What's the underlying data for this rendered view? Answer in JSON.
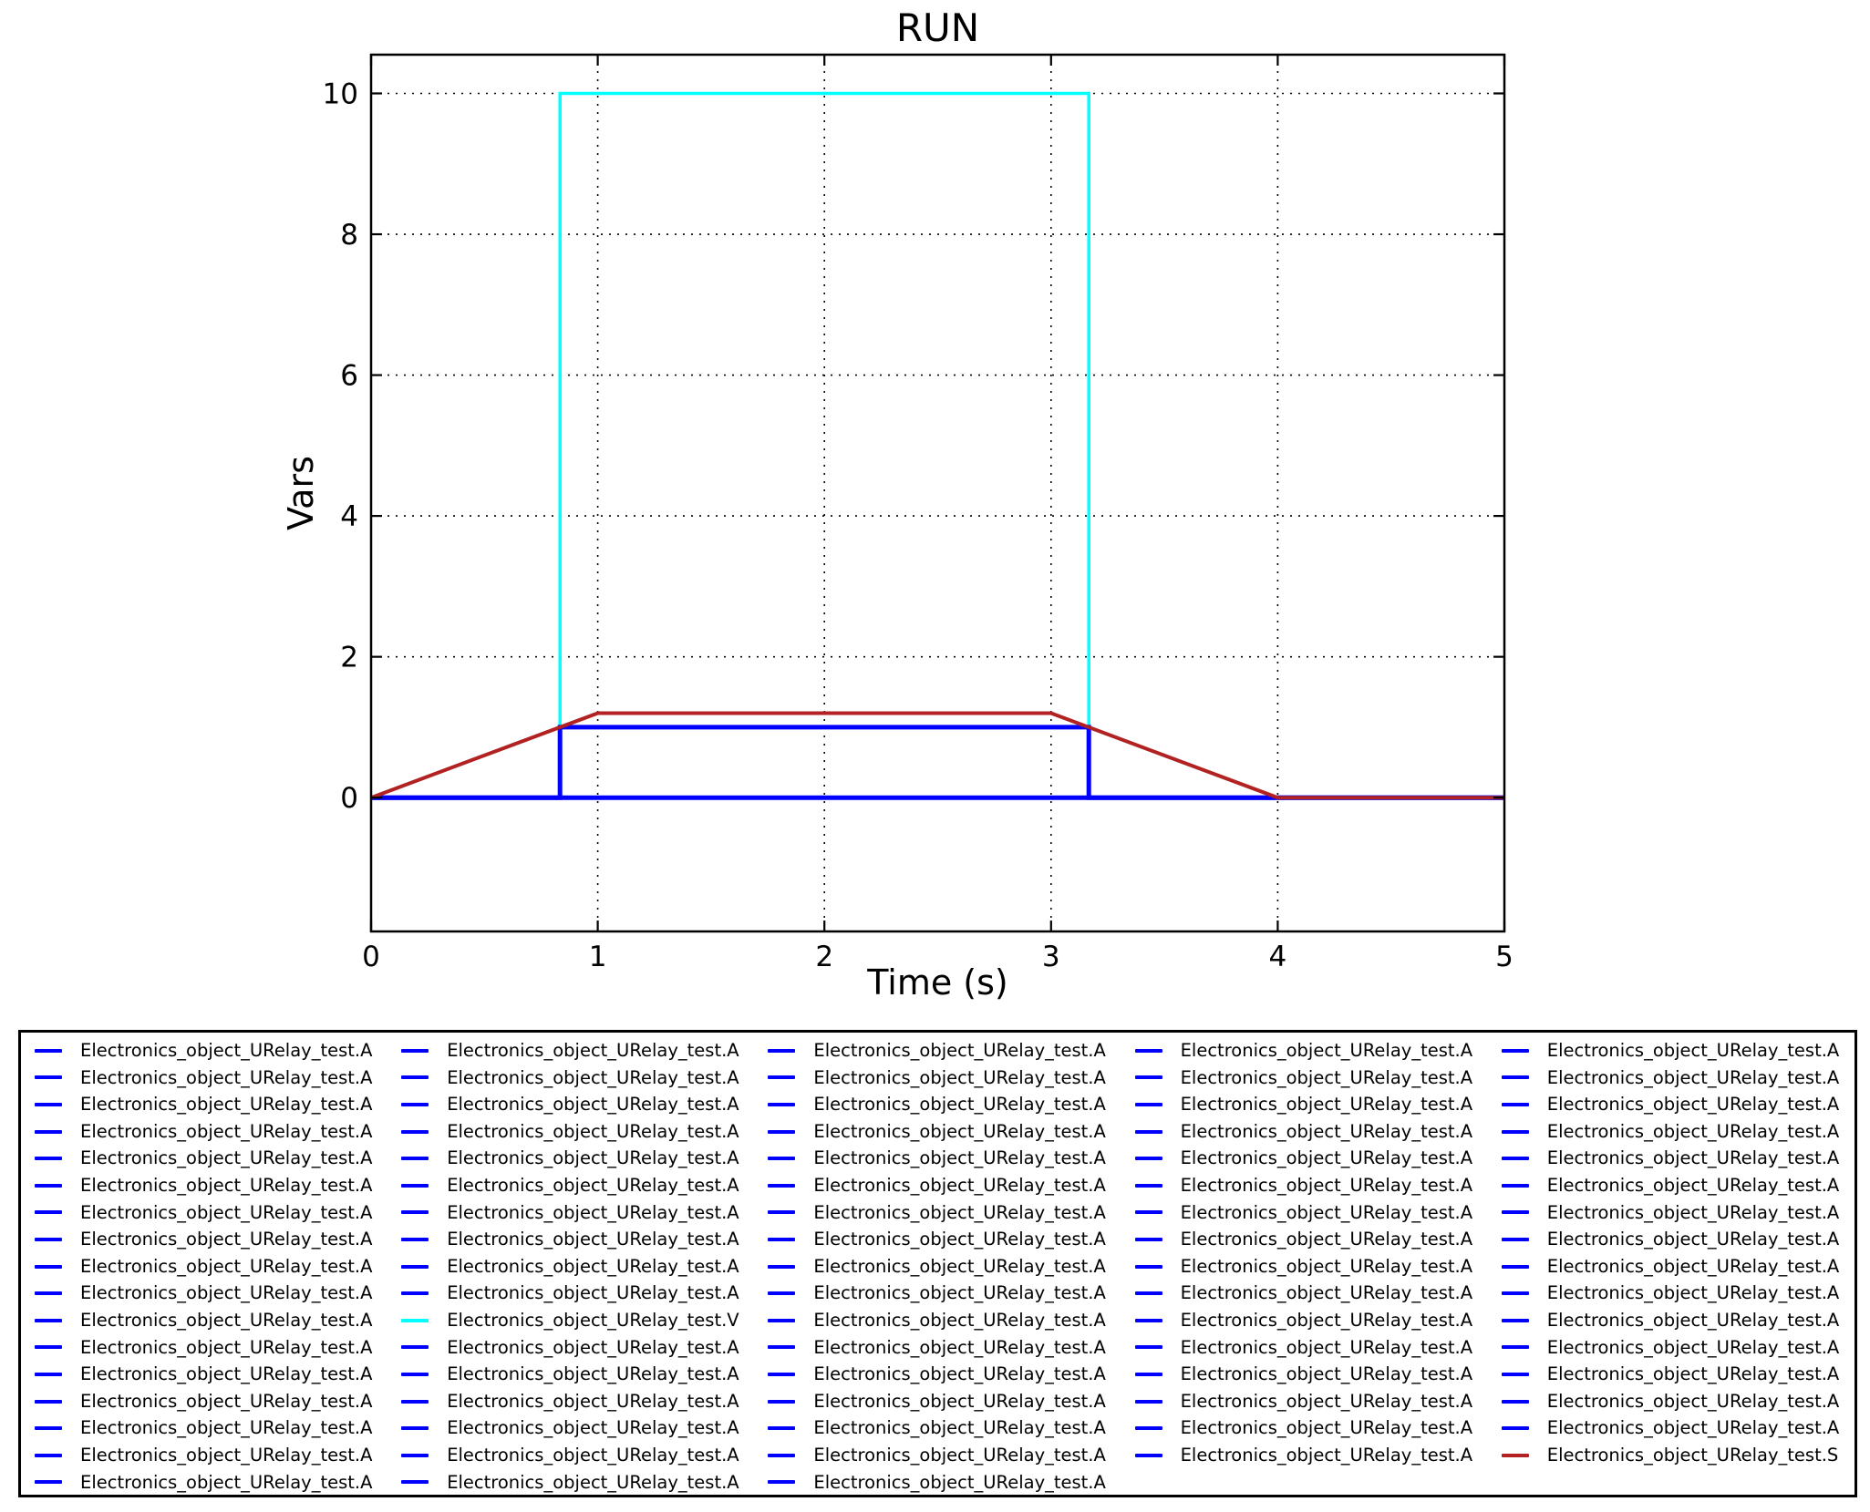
{
  "figure": {
    "background": "#ffffff",
    "frame_color": "#000000",
    "grid_style": "dotted"
  },
  "chart_data": {
    "type": "line",
    "title": "RUN",
    "xlabel": "Time (s)",
    "ylabel": "Vars",
    "xlim": [
      0,
      5
    ],
    "ylim": [
      -1.9,
      10.55
    ],
    "xticks": [
      0,
      1,
      2,
      3,
      4,
      5
    ],
    "yticks": [
      0,
      2,
      4,
      6,
      8,
      10
    ],
    "grid": true,
    "legend_position": "below",
    "series": [
      {
        "name": "Electronics_object_URelay_test.V",
        "color": "#00ffff",
        "width": 3.5,
        "points": [
          [
            0,
            0
          ],
          [
            0.8333,
            0
          ],
          [
            0.8333,
            10
          ],
          [
            3.1667,
            10
          ],
          [
            3.1667,
            0
          ],
          [
            5,
            0
          ]
        ]
      },
      {
        "name": "Electronics_object_URelay_test.A",
        "color": "#0000ff",
        "width": 5,
        "points": [
          [
            0,
            0
          ],
          [
            5,
            0
          ]
        ]
      },
      {
        "name": "Electronics_object_URelay_test.A",
        "color": "#0000ff",
        "width": 5,
        "points": [
          [
            0,
            0
          ],
          [
            0.8333,
            0
          ],
          [
            0.8333,
            1
          ],
          [
            3.1667,
            1
          ],
          [
            3.1667,
            0
          ],
          [
            5,
            0
          ]
        ]
      },
      {
        "name": "Electronics_object_URelay_test.S",
        "color": "#b22222",
        "width": 4,
        "points": [
          [
            0,
            0
          ],
          [
            1,
            1.2
          ],
          [
            3,
            1.2
          ],
          [
            4,
            0
          ],
          [
            5,
            0
          ]
        ]
      }
    ]
  },
  "legend": {
    "labels": {
      "A": "Electronics_object_URelay_test.A",
      "V": "Electronics_object_URelay_test.V",
      "S": "Electronics_object_URelay_test.S"
    },
    "colors": {
      "A": "#0000ff",
      "V": "#00ffff",
      "S": "#b22222"
    },
    "columns": [
      [
        "A",
        "A",
        "A",
        "A",
        "A",
        "A",
        "A",
        "A",
        "A",
        "A",
        "A",
        "A",
        "A",
        "A",
        "A",
        "A",
        "A"
      ],
      [
        "A",
        "A",
        "A",
        "A",
        "A",
        "A",
        "A",
        "A",
        "A",
        "A",
        "V",
        "A",
        "A",
        "A",
        "A",
        "A",
        "A"
      ],
      [
        "A",
        "A",
        "A",
        "A",
        "A",
        "A",
        "A",
        "A",
        "A",
        "A",
        "A",
        "A",
        "A",
        "A",
        "A",
        "A",
        "A"
      ],
      [
        "A",
        "A",
        "A",
        "A",
        "A",
        "A",
        "A",
        "A",
        "A",
        "A",
        "A",
        "A",
        "A",
        "A",
        "A",
        "A"
      ],
      [
        "A",
        "A",
        "A",
        "A",
        "A",
        "A",
        "A",
        "A",
        "A",
        "A",
        "A",
        "A",
        "A",
        "A",
        "A",
        "S"
      ]
    ]
  }
}
